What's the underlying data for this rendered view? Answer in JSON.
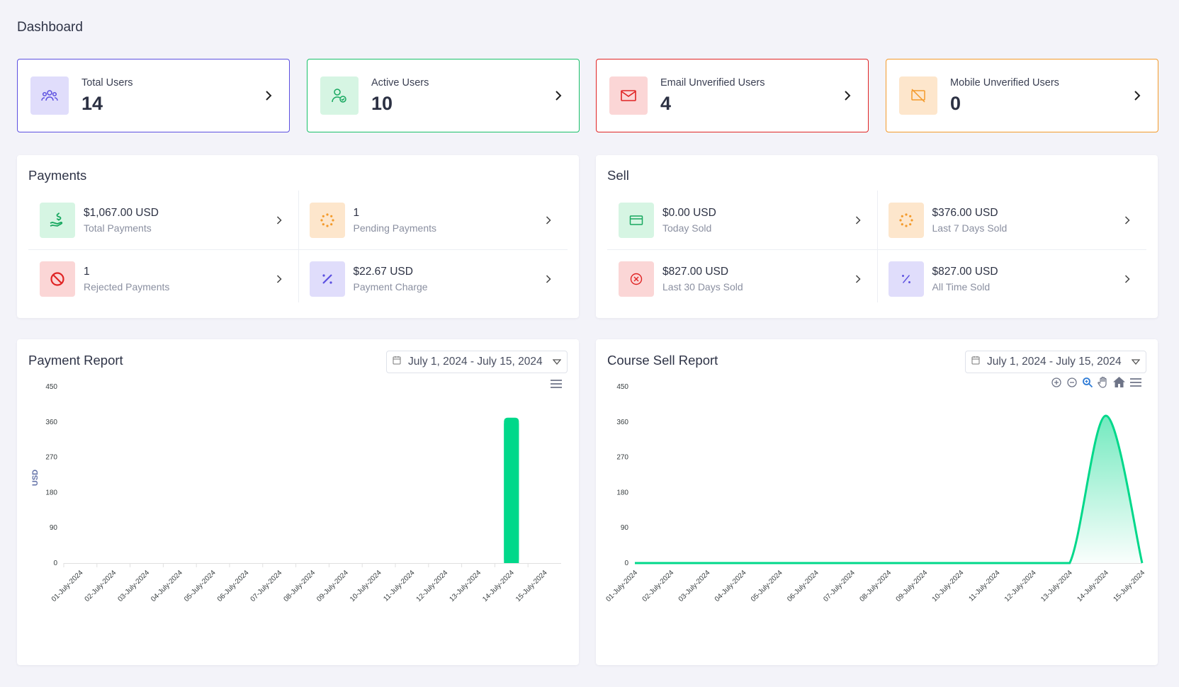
{
  "page": {
    "title": "Dashboard"
  },
  "colors": {
    "purple": "#5b4fe0",
    "green": "#18c069",
    "red": "#e02424",
    "orange": "#f39a2b",
    "chart_green": "#00d88a",
    "chart_axis_label": "#6473a8"
  },
  "stats": [
    {
      "label": "Total Users",
      "value": "14",
      "icon": "users-group-icon"
    },
    {
      "label": "Active Users",
      "value": "10",
      "icon": "user-check-icon"
    },
    {
      "label": "Email Unverified Users",
      "value": "4",
      "icon": "mail-icon"
    },
    {
      "label": "Mobile Unverified Users",
      "value": "0",
      "icon": "mobile-off-icon"
    }
  ],
  "payments": {
    "title": "Payments",
    "items": [
      {
        "value": "$1,067.00 USD",
        "label": "Total Payments",
        "icon": "hand-dollar-icon"
      },
      {
        "value": "1",
        "label": "Pending Payments",
        "icon": "spinner-icon"
      },
      {
        "value": "1",
        "label": "Rejected Payments",
        "icon": "ban-icon"
      },
      {
        "value": "$22.67 USD",
        "label": "Payment Charge",
        "icon": "percent-icon"
      }
    ]
  },
  "sell": {
    "title": "Sell",
    "items": [
      {
        "value": "$0.00 USD",
        "label": "Today Sold",
        "icon": "credit-card-icon"
      },
      {
        "value": "$376.00 USD",
        "label": "Last 7 Days Sold",
        "icon": "spinner-icon"
      },
      {
        "value": "$827.00 USD",
        "label": "Last 30 Days Sold",
        "icon": "circle-x-icon"
      },
      {
        "value": "$827.00 USD",
        "label": "All Time Sold",
        "icon": "percent-icon"
      }
    ]
  },
  "payment_report": {
    "title": "Payment Report",
    "date_range": "July 1, 2024 - July 15, 2024"
  },
  "sell_report": {
    "title": "Course Sell Report",
    "date_range": "July 1, 2024 - July 15, 2024"
  },
  "chart_data": [
    {
      "type": "bar",
      "title": "Payment Report",
      "ylabel": "USD",
      "xlabel": "",
      "ylim": [
        0,
        450
      ],
      "yticks": [
        0,
        90,
        180,
        270,
        360,
        450
      ],
      "categories": [
        "01-July-2024",
        "02-July-2024",
        "03-July-2024",
        "04-July-2024",
        "05-July-2024",
        "06-July-2024",
        "07-July-2024",
        "08-July-2024",
        "09-July-2024",
        "10-July-2024",
        "11-July-2024",
        "12-July-2024",
        "13-July-2024",
        "14-July-2024",
        "15-July-2024"
      ],
      "values": [
        0,
        0,
        0,
        0,
        0,
        0,
        0,
        0,
        0,
        0,
        0,
        0,
        0,
        371,
        0
      ],
      "grid": false
    },
    {
      "type": "area",
      "title": "Course Sell Report",
      "ylabel": "",
      "xlabel": "",
      "ylim": [
        0,
        450
      ],
      "yticks": [
        0,
        90,
        180,
        270,
        360,
        450
      ],
      "categories": [
        "01-July-2024",
        "02-July-2024",
        "03-July-2024",
        "04-July-2024",
        "05-July-2024",
        "06-July-2024",
        "07-July-2024",
        "08-July-2024",
        "09-July-2024",
        "10-July-2024",
        "11-July-2024",
        "12-July-2024",
        "13-July-2024",
        "14-July-2024",
        "15-July-2024"
      ],
      "values": [
        0,
        0,
        0,
        0,
        0,
        0,
        0,
        0,
        0,
        0,
        0,
        0,
        0,
        376,
        0
      ],
      "grid": false
    }
  ]
}
